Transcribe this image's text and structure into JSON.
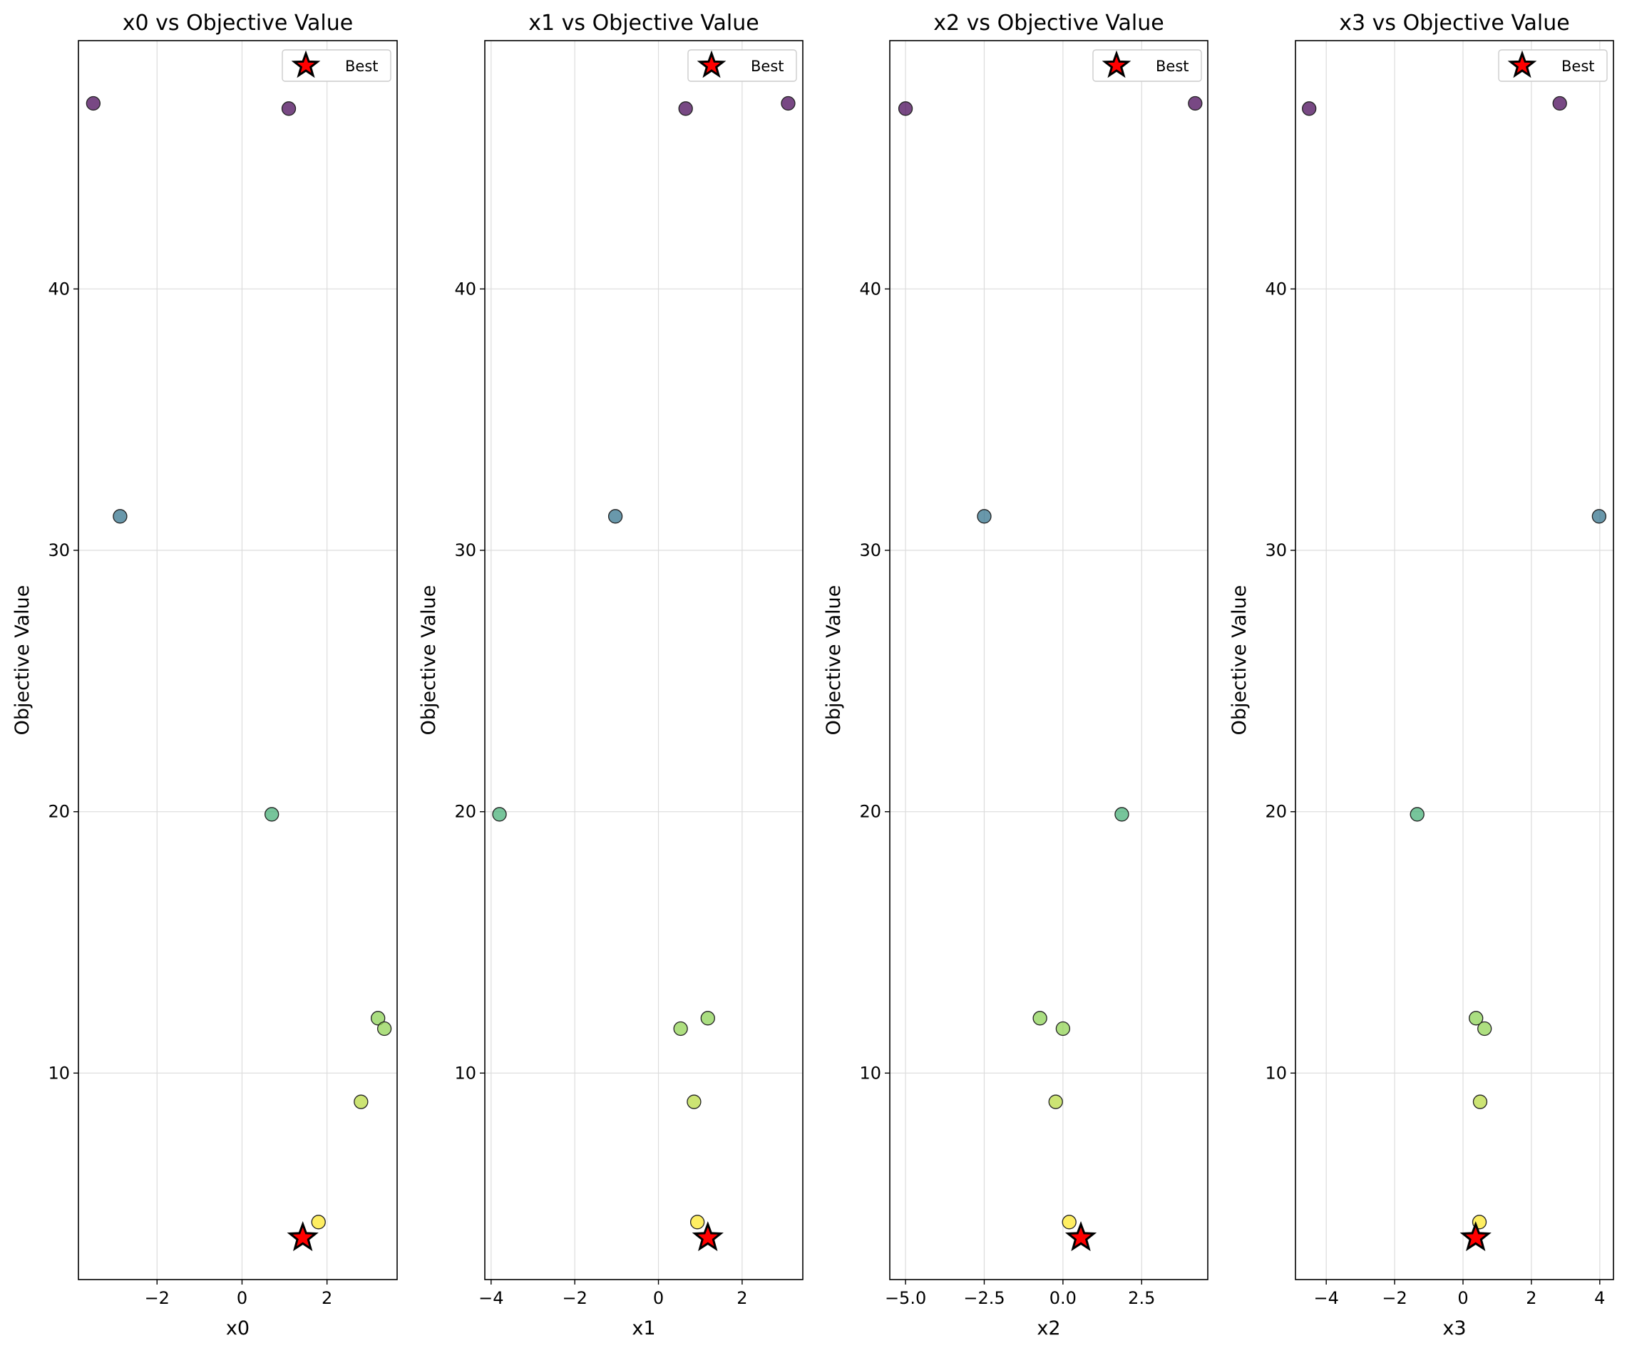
{
  "chart_data": [
    {
      "type": "scatter",
      "title": "x0 vs Objective Value",
      "xlabel": "x0",
      "ylabel": "Objective Value",
      "xlim": [
        -3.85,
        3.65
      ],
      "ylim": [
        2.1,
        49.5
      ],
      "xticks": [
        -2,
        0,
        2
      ],
      "xtick_labels": [
        "−2",
        "0",
        "2"
      ],
      "yticks": [
        10,
        20,
        30,
        40
      ],
      "ytick_labels": [
        "10",
        "20",
        "30",
        "40"
      ],
      "grid": true,
      "legend": {
        "label": "Best",
        "position": "top-right"
      },
      "points": [
        {
          "x": -3.5,
          "y": 47.1
        },
        {
          "x": 1.1,
          "y": 46.9
        },
        {
          "x": -2.87,
          "y": 31.3
        },
        {
          "x": 0.7,
          "y": 19.9
        },
        {
          "x": 3.2,
          "y": 12.1
        },
        {
          "x": 3.35,
          "y": 11.7
        },
        {
          "x": 2.8,
          "y": 8.9
        },
        {
          "x": 1.8,
          "y": 4.3
        }
      ],
      "best": {
        "x": 1.43,
        "y": 3.7
      }
    },
    {
      "type": "scatter",
      "title": "x1 vs Objective Value",
      "xlabel": "x1",
      "ylabel": "Objective Value",
      "xlim": [
        -4.15,
        3.45
      ],
      "ylim": [
        2.1,
        49.5
      ],
      "xticks": [
        -4,
        -2,
        0,
        2
      ],
      "xtick_labels": [
        "−4",
        "−2",
        "0",
        "2"
      ],
      "yticks": [
        10,
        20,
        30,
        40
      ],
      "ytick_labels": [
        "10",
        "20",
        "30",
        "40"
      ],
      "grid": true,
      "legend": {
        "label": "Best",
        "position": "top-right"
      },
      "points": [
        {
          "x": 0.65,
          "y": 46.9
        },
        {
          "x": 3.1,
          "y": 47.1
        },
        {
          "x": -1.03,
          "y": 31.3
        },
        {
          "x": -3.8,
          "y": 19.9
        },
        {
          "x": 1.18,
          "y": 12.1
        },
        {
          "x": 0.53,
          "y": 11.7
        },
        {
          "x": 0.85,
          "y": 8.9
        },
        {
          "x": 0.93,
          "y": 4.3
        }
      ],
      "best": {
        "x": 1.18,
        "y": 3.7
      }
    },
    {
      "type": "scatter",
      "title": "x2 vs Objective Value",
      "xlabel": "x2",
      "ylabel": "Objective Value",
      "xlim": [
        -5.5,
        4.6
      ],
      "ylim": [
        2.1,
        49.5
      ],
      "xticks": [
        -5.0,
        -2.5,
        0.0,
        2.5
      ],
      "xtick_labels": [
        "−5.0",
        "−2.5",
        "0.0",
        "2.5"
      ],
      "yticks": [
        10,
        20,
        30,
        40
      ],
      "ytick_labels": [
        "10",
        "20",
        "30",
        "40"
      ],
      "grid": true,
      "legend": {
        "label": "Best",
        "position": "top-right"
      },
      "points": [
        {
          "x": -5.0,
          "y": 46.9
        },
        {
          "x": 4.2,
          "y": 47.1
        },
        {
          "x": -2.5,
          "y": 31.3
        },
        {
          "x": 1.87,
          "y": 19.9
        },
        {
          "x": -0.73,
          "y": 12.1
        },
        {
          "x": 0.0,
          "y": 11.7
        },
        {
          "x": -0.23,
          "y": 8.9
        },
        {
          "x": 0.2,
          "y": 4.3
        }
      ],
      "best": {
        "x": 0.57,
        "y": 3.7
      }
    },
    {
      "type": "scatter",
      "title": "x3 vs Objective Value",
      "xlabel": "x3",
      "ylabel": "Objective Value",
      "xlim": [
        -4.9,
        4.4
      ],
      "ylim": [
        2.1,
        49.5
      ],
      "xticks": [
        -4,
        -2,
        0,
        2,
        4
      ],
      "xtick_labels": [
        "−4",
        "−2",
        "0",
        "2",
        "4"
      ],
      "yticks": [
        10,
        20,
        30,
        40
      ],
      "ytick_labels": [
        "10",
        "20",
        "30",
        "40"
      ],
      "grid": true,
      "legend": {
        "label": "Best",
        "position": "top-right"
      },
      "points": [
        {
          "x": -4.5,
          "y": 46.9
        },
        {
          "x": 2.83,
          "y": 47.1
        },
        {
          "x": 3.98,
          "y": 31.3
        },
        {
          "x": -1.34,
          "y": 19.9
        },
        {
          "x": 0.38,
          "y": 12.1
        },
        {
          "x": 0.63,
          "y": 11.7
        },
        {
          "x": 0.5,
          "y": 8.9
        },
        {
          "x": 0.48,
          "y": 4.3
        }
      ],
      "best": {
        "x": 0.37,
        "y": 3.7
      }
    }
  ],
  "colors": {
    "colormap": "viridis",
    "best_marker": "#ff0000",
    "grid": "#dcdcdc"
  }
}
